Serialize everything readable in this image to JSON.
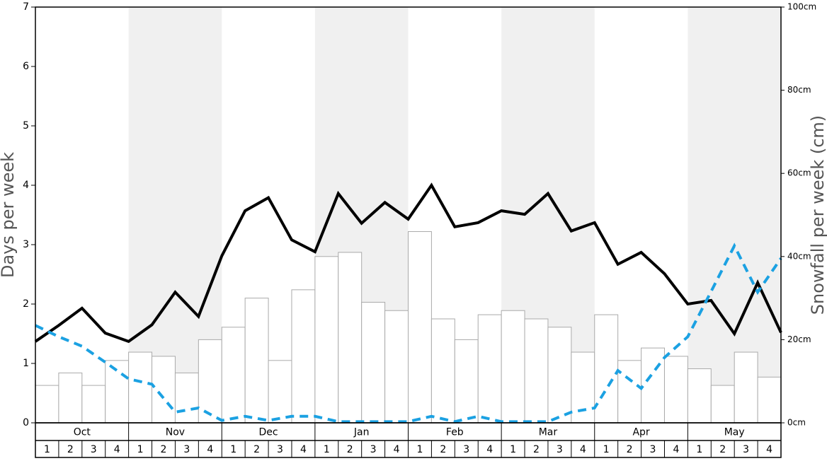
{
  "chart_data": {
    "type": "bar_line",
    "y_label": "Days per week",
    "y2_label": "Snowfall per week (cm)",
    "months": [
      "Oct",
      "Nov",
      "Dec",
      "Jan",
      "Feb",
      "Mar",
      "Apr",
      "May"
    ],
    "weeks": [
      "1",
      "2",
      "3",
      "4"
    ],
    "shade_color": "#f0f0f0",
    "ylim": [
      0,
      7
    ],
    "yticks": [
      0,
      1,
      2,
      3,
      4,
      5,
      6,
      7
    ],
    "y2lim": [
      0,
      100
    ],
    "y2ticks": [
      {
        "value": 0,
        "label": "0cm"
      },
      {
        "value": 20,
        "label": "20cm"
      },
      {
        "value": 40,
        "label": "40cm"
      },
      {
        "value": 60,
        "label": "60cm"
      },
      {
        "value": 80,
        "label": "80cm"
      },
      {
        "value": 100,
        "label": "100cm"
      }
    ],
    "series": [
      {
        "type": "bar",
        "axis": "y2",
        "color": "#ffffff",
        "stroke": "#aaaaaa",
        "values": [
          9,
          12,
          9,
          15,
          17,
          16,
          12,
          20,
          23,
          30,
          15,
          32,
          40,
          41,
          29,
          27,
          46,
          25,
          20,
          26,
          27,
          25,
          23,
          17,
          26,
          15,
          18,
          16,
          13,
          9,
          17,
          11
        ]
      },
      {
        "type": "line",
        "color": "#000000",
        "dashed": false,
        "values": [
          1.37,
          1.64,
          1.93,
          1.51,
          1.37,
          1.65,
          2.2,
          1.79,
          2.81,
          3.57,
          3.79,
          3.08,
          2.88,
          3.86,
          3.36,
          3.71,
          3.43,
          4.0,
          3.3,
          3.37,
          3.57,
          3.51,
          3.86,
          3.23,
          3.37,
          2.67,
          2.87,
          2.51,
          2.0,
          2.06,
          1.5,
          2.36,
          1.52
        ]
      },
      {
        "type": "line",
        "color": "#1ba1e2",
        "dashed": true,
        "values": [
          1.64,
          1.45,
          1.29,
          1.02,
          0.74,
          0.65,
          0.18,
          0.25,
          0.04,
          0.11,
          0.04,
          0.11,
          0.11,
          0.02,
          0.02,
          0.02,
          0.02,
          0.11,
          0.02,
          0.11,
          0.02,
          0.02,
          0.02,
          0.18,
          0.25,
          0.88,
          0.58,
          1.1,
          1.45,
          2.21,
          2.98,
          2.2,
          2.77
        ]
      }
    ]
  }
}
